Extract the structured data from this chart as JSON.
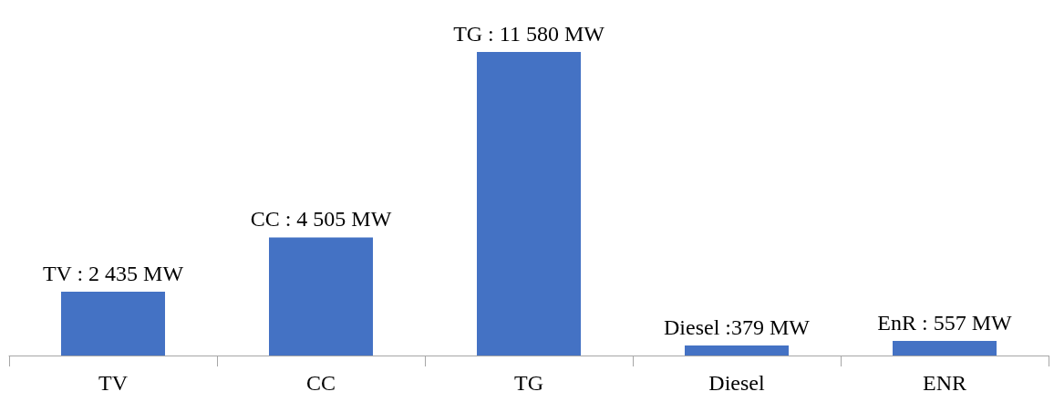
{
  "chart_data": {
    "type": "bar",
    "categories": [
      "TV",
      "CC",
      "TG",
      "Diesel",
      "ENR"
    ],
    "values": [
      2435,
      4505,
      11580,
      379,
      557
    ],
    "value_labels": [
      "TV : 2 435 MW",
      "CC : 4 505 MW",
      "TG : 11 580 MW",
      "Diesel :379 MW",
      "EnR : 557 MW"
    ],
    "color": "#4472c4"
  }
}
